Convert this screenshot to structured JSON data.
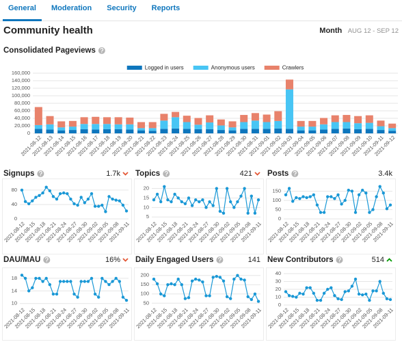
{
  "tabs": [
    "General",
    "Moderation",
    "Security",
    "Reports"
  ],
  "active_tab": 0,
  "header": {
    "title": "Community health",
    "period_label": "Month",
    "period": "AUG 12 - SEP 12"
  },
  "chart_data": [
    {
      "type": "bar",
      "stacked": true,
      "title": "Consolidated Pageviews",
      "categories": [
        "2021-08-12",
        "2021-08-13",
        "2021-08-14",
        "2021-08-15",
        "2021-08-16",
        "2021-08-17",
        "2021-08-18",
        "2021-08-19",
        "2021-08-20",
        "2021-08-21",
        "2021-08-22",
        "2021-08-23",
        "2021-08-24",
        "2021-08-25",
        "2021-08-26",
        "2021-08-27",
        "2021-08-28",
        "2021-08-29",
        "2021-08-30",
        "2021-08-31",
        "2021-09-01",
        "2021-09-02",
        "2021-09-03",
        "2021-09-04",
        "2021-09-05",
        "2021-09-06",
        "2021-09-07",
        "2021-09-08",
        "2021-09-09",
        "2021-09-10",
        "2021-09-11",
        "2021-09-12"
      ],
      "series": [
        {
          "name": "Logged in users",
          "color": "#0e76bd",
          "values": [
            12000,
            10000,
            8000,
            9000,
            11000,
            10000,
            11000,
            11000,
            10000,
            8000,
            7000,
            12000,
            13000,
            12000,
            11000,
            11000,
            9000,
            8000,
            12000,
            12000,
            12000,
            13000,
            12000,
            8000,
            8000,
            10000,
            12000,
            13000,
            11000,
            12000,
            9000,
            7000
          ]
        },
        {
          "name": "Anonymous users",
          "color": "#48c5f4",
          "values": [
            10000,
            14000,
            8000,
            9000,
            14000,
            15000,
            14000,
            13000,
            14000,
            6000,
            7000,
            22000,
            30000,
            18000,
            12000,
            18000,
            12000,
            8000,
            18000,
            22000,
            18000,
            20000,
            105000,
            10000,
            10000,
            14000,
            18000,
            17000,
            16000,
            16000,
            10000,
            7000
          ]
        },
        {
          "name": "Crawlers",
          "color": "#e8826b",
          "values": [
            48000,
            22000,
            16000,
            15000,
            18000,
            19000,
            18000,
            19000,
            18000,
            16000,
            16000,
            18000,
            14000,
            17000,
            18000,
            19000,
            16000,
            16000,
            19000,
            20000,
            20000,
            26000,
            26000,
            15000,
            15000,
            17000,
            18000,
            19000,
            19000,
            20000,
            15000,
            12000
          ]
        }
      ],
      "ylim": [
        0,
        160000
      ],
      "yticks": [
        0,
        {
          "value": 20000,
          "label": "20,000"
        },
        {
          "value": 40000,
          "label": "40,000"
        },
        {
          "value": 60000,
          "label": "60,000"
        },
        {
          "value": 80000,
          "label": "80,000"
        },
        {
          "value": 100000,
          "label": "100,000"
        },
        {
          "value": 120000,
          "label": "120,000"
        },
        {
          "value": 140000,
          "label": "140,000"
        },
        {
          "value": 160000,
          "label": "160,000"
        }
      ],
      "grid": true,
      "legend": "top"
    },
    {
      "type": "line",
      "title": "Signups",
      "total": "1.7k",
      "trend": "down",
      "color": "#1a98d6",
      "categories": [
        "2021-08-12",
        null,
        null,
        "2021-08-15",
        null,
        null,
        "2021-08-18",
        null,
        null,
        "2021-08-21",
        null,
        null,
        "2021-08-24",
        null,
        null,
        "2021-08-27",
        null,
        null,
        "2021-08-30",
        null,
        null,
        "2021-09-02",
        null,
        null,
        "2021-09-05",
        null,
        null,
        "2021-09-08",
        null,
        null,
        "2021-09-11"
      ],
      "values": [
        80,
        48,
        42,
        50,
        60,
        65,
        72,
        88,
        78,
        62,
        55,
        70,
        72,
        70,
        55,
        42,
        38,
        60,
        45,
        55,
        70,
        35,
        35,
        38,
        20,
        62,
        55,
        52,
        50,
        38,
        22
      ],
      "ylim": [
        0,
        95
      ],
      "yticks": [
        0,
        40,
        80
      ],
      "grid": true
    },
    {
      "type": "line",
      "title": "Topics",
      "total": "421",
      "trend": "down",
      "color": "#1a98d6",
      "categories": [
        "2021-08-12",
        null,
        null,
        "2021-08-15",
        null,
        null,
        "2021-08-18",
        null,
        null,
        "2021-08-21",
        null,
        null,
        "2021-08-24",
        null,
        null,
        "2021-08-27",
        null,
        null,
        "2021-08-30",
        null,
        null,
        "2021-09-02",
        null,
        null,
        "2021-09-05",
        null,
        null,
        "2021-09-08",
        null,
        null,
        "2021-09-11"
      ],
      "values": [
        14,
        17,
        13,
        21,
        14,
        13,
        17,
        15,
        13,
        12,
        15,
        11,
        14,
        13,
        14,
        10,
        13,
        11,
        20,
        8,
        7,
        20,
        13,
        10,
        13,
        16,
        20,
        7,
        16,
        7,
        14
      ],
      "ylim": [
        4,
        22
      ],
      "yticks": [
        5,
        10,
        15,
        20
      ],
      "grid": true
    },
    {
      "type": "line",
      "title": "Posts",
      "total": "3.4k",
      "color": "#1a98d6",
      "categories": [
        "2021-08-12",
        null,
        null,
        "2021-08-15",
        null,
        null,
        "2021-08-18",
        null,
        null,
        "2021-08-21",
        null,
        null,
        "2021-08-24",
        null,
        null,
        "2021-08-27",
        null,
        null,
        "2021-08-30",
        null,
        null,
        "2021-09-02",
        null,
        null,
        "2021-09-05",
        null,
        null,
        "2021-09-08",
        null,
        null,
        "2021-09-11"
      ],
      "values": [
        130,
        165,
        95,
        115,
        110,
        120,
        115,
        120,
        130,
        75,
        35,
        35,
        120,
        120,
        110,
        130,
        80,
        100,
        155,
        150,
        35,
        130,
        155,
        140,
        35,
        50,
        120,
        175,
        140,
        55,
        75
      ],
      "ylim": [
        0,
        185
      ],
      "yticks": [
        0,
        50,
        100,
        150
      ],
      "grid": true
    },
    {
      "type": "line",
      "title": "DAU/MAU",
      "total": "16%",
      "trend": "down",
      "color": "#1a98d6",
      "categories": [
        "2021-08-12",
        null,
        null,
        "2021-08-15",
        null,
        null,
        "2021-08-18",
        null,
        null,
        "2021-08-21",
        null,
        null,
        "2021-08-24",
        null,
        null,
        "2021-08-27",
        null,
        null,
        "2021-08-30",
        null,
        null,
        "2021-09-02",
        null,
        null,
        "2021-09-05",
        null,
        null,
        "2021-09-08",
        null,
        null,
        "2021-09-11"
      ],
      "values": [
        19,
        18,
        14,
        15,
        18,
        18,
        17,
        18,
        16,
        13,
        13,
        17,
        17,
        17,
        17,
        13,
        12,
        17,
        17,
        17,
        18,
        13,
        12,
        18,
        17,
        16,
        17,
        18,
        17,
        12,
        11
      ],
      "ylim": [
        9.5,
        19.5
      ],
      "yticks": [
        10,
        14,
        18
      ],
      "grid": true
    },
    {
      "type": "line",
      "title": "Daily Engaged Users",
      "total": "141",
      "color": "#1a98d6",
      "categories": [
        "2021-08-12",
        null,
        null,
        "2021-08-15",
        null,
        null,
        "2021-08-18",
        null,
        null,
        "2021-08-21",
        null,
        null,
        "2021-08-24",
        null,
        null,
        "2021-08-27",
        null,
        null,
        "2021-08-30",
        null,
        null,
        "2021-09-02",
        null,
        null,
        "2021-09-05",
        null,
        null,
        "2021-09-08",
        null,
        null,
        "2021-09-11"
      ],
      "values": [
        180,
        155,
        100,
        90,
        150,
        155,
        150,
        180,
        150,
        75,
        80,
        170,
        180,
        175,
        165,
        90,
        90,
        190,
        195,
        190,
        170,
        85,
        75,
        180,
        200,
        180,
        175,
        85,
        70,
        100,
        60
      ],
      "ylim": [
        40,
        210
      ],
      "yticks": [
        50,
        100,
        150,
        200
      ],
      "grid": true
    },
    {
      "type": "line",
      "title": "New Contributors",
      "total": "514",
      "trend": "up",
      "color": "#1a98d6",
      "categories": [
        "2021-08-12",
        null,
        null,
        "2021-08-15",
        null,
        null,
        "2021-08-18",
        null,
        null,
        "2021-08-21",
        null,
        null,
        "2021-08-24",
        null,
        null,
        "2021-08-27",
        null,
        null,
        "2021-08-30",
        null,
        null,
        "2021-09-02",
        null,
        null,
        "2021-09-05",
        null,
        null,
        "2021-09-08",
        null,
        null,
        "2021-09-11"
      ],
      "values": [
        17,
        12,
        11,
        10,
        15,
        14,
        22,
        22,
        15,
        6,
        6,
        15,
        20,
        22,
        12,
        8,
        7,
        17,
        18,
        24,
        33,
        14,
        13,
        14,
        6,
        18,
        18,
        30,
        15,
        8,
        7
      ],
      "ylim": [
        0,
        40
      ],
      "yticks": [
        0,
        10,
        20,
        30,
        40
      ],
      "grid": true
    }
  ]
}
